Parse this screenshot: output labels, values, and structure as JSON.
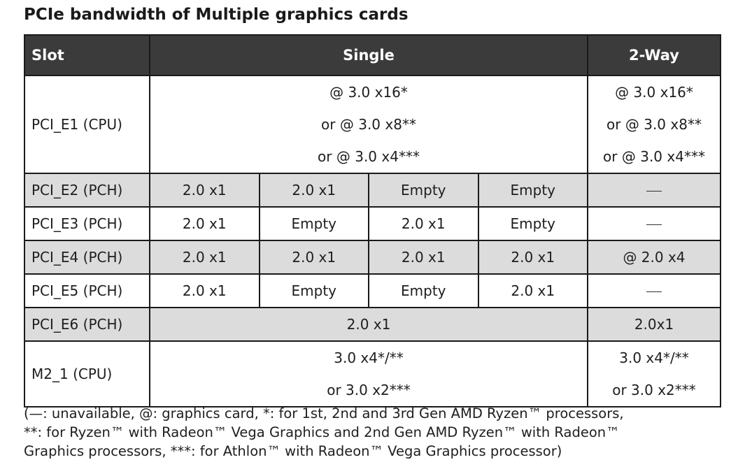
{
  "title": "PCIe bandwidth of Multiple graphics cards",
  "table": {
    "headers": {
      "slot": "Slot",
      "single": "Single",
      "two_way": "2-Way"
    },
    "rows": {
      "e1": {
        "slot": "PCI_E1 (CPU)",
        "single": [
          "@ 3.0 x16*",
          "or @ 3.0 x8**",
          "or @ 3.0 x4***"
        ],
        "two_way": [
          "@ 3.0 x16*",
          "or @ 3.0 x8**",
          "or @ 3.0 x4***"
        ]
      },
      "e2": {
        "slot": "PCI_E2 (PCH)",
        "single": [
          "2.0 x1",
          "2.0 x1",
          "Empty",
          "Empty"
        ],
        "two_way": "—"
      },
      "e3": {
        "slot": "PCI_E3 (PCH)",
        "single": [
          "2.0 x1",
          "Empty",
          "2.0 x1",
          "Empty"
        ],
        "two_way": "—"
      },
      "e4": {
        "slot": "PCI_E4 (PCH)",
        "single": [
          "2.0 x1",
          "2.0 x1",
          "2.0 x1",
          "2.0 x1"
        ],
        "two_way": "@ 2.0 x4"
      },
      "e5": {
        "slot": "PCI_E5 (PCH)",
        "single": [
          "2.0 x1",
          "Empty",
          "Empty",
          "2.0 x1"
        ],
        "two_way": "—"
      },
      "e6": {
        "slot": "PCI_E6 (PCH)",
        "single": "2.0 x1",
        "two_way": "2.0x1"
      },
      "m2": {
        "slot": "M2_1 (CPU)",
        "single": [
          "3.0 x4*/**",
          "or 3.0 x2***"
        ],
        "two_way": [
          "3.0 x4*/**",
          "or 3.0 x2***"
        ]
      }
    }
  },
  "footnote": {
    "lines": [
      "(—: unavailable, @: graphics card, *: for 1st, 2nd and 3rd Gen AMD Ryzen™ processors,",
      "**: for Ryzen™ with Radeon™ Vega Graphics and 2nd Gen AMD Ryzen™ with Radeon™",
      "Graphics processors, ***: for Athlon™ with Radeon™ Vega Graphics processor)"
    ]
  },
  "colors": {
    "header_bg": "#3b3b3b",
    "shaded_row_bg": "#dcdcdc",
    "border": "#1a1a1a"
  }
}
